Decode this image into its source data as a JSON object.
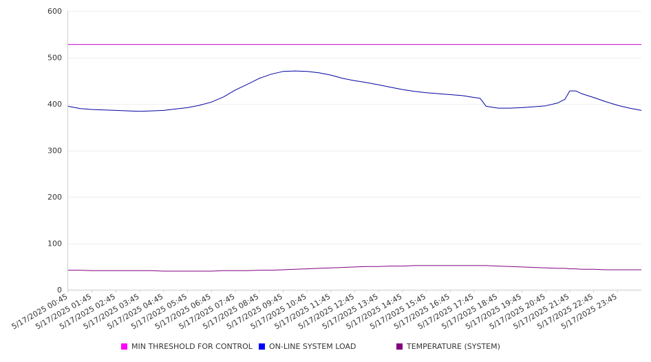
{
  "chart_data": {
    "type": "line",
    "title": "",
    "xlabel": "",
    "ylabel": "",
    "ylim": [
      0,
      600
    ],
    "y_ticks": [
      0,
      100,
      200,
      300,
      400,
      500,
      600
    ],
    "grid": "horizontal",
    "legend_position": "bottom",
    "x_tick_labels": [
      "5/17/2025 00:45",
      "5/17/2025 01:45",
      "5/17/2025 02:45",
      "5/17/2025 03:45",
      "5/17/2025 04:45",
      "5/17/2025 05:45",
      "5/17/2025 06:45",
      "5/17/2025 07:45",
      "5/17/2025 08:45",
      "5/17/2025 09:45",
      "5/17/2025 10:45",
      "5/17/2025 11:45",
      "5/17/2025 12:45",
      "5/17/2025 13:45",
      "5/17/2025 14:45",
      "5/17/2025 15:45",
      "5/17/2025 16:45",
      "5/17/2025 17:45",
      "5/17/2025 18:45",
      "5/17/2025 19:45",
      "5/17/2025 20:45",
      "5/17/2025 21:45",
      "5/17/2025 22:45",
      "5/17/2025 23:45"
    ],
    "x_hours": [
      0,
      0.5,
      1,
      1.5,
      2,
      2.5,
      3,
      3.5,
      4,
      4.5,
      5,
      5.5,
      6,
      6.5,
      7,
      7.5,
      8,
      8.5,
      9,
      9.5,
      10,
      10.5,
      11,
      11.5,
      12,
      12.5,
      13,
      13.5,
      14,
      14.5,
      15,
      15.5,
      16,
      16.5,
      17,
      17.25,
      17.5,
      18,
      18.5,
      19,
      19.5,
      20,
      20.5,
      20.8,
      21,
      21.25,
      21.5,
      22,
      22.5,
      23,
      23.5,
      24
    ],
    "series": [
      {
        "name": "MIN THRESHOLD FOR CONTROL",
        "color": "#c800c8",
        "values": [
          528,
          528,
          528,
          528,
          528,
          528,
          528,
          528,
          528,
          528,
          528,
          528,
          528,
          528,
          528,
          528,
          528,
          528,
          528,
          528,
          528,
          528,
          528,
          528,
          528,
          528,
          528,
          528,
          528,
          528,
          528,
          528,
          528,
          528,
          528,
          528,
          528,
          528,
          528,
          528,
          528,
          528,
          528,
          528,
          528,
          528,
          528,
          528,
          528,
          528,
          528,
          528
        ]
      },
      {
        "name": "ON-LINE SYSTEM LOAD",
        "color": "#0000a0",
        "values": [
          395,
          390,
          388,
          387,
          386,
          385,
          384,
          385,
          386,
          389,
          392,
          397,
          404,
          415,
          430,
          442,
          455,
          464,
          470,
          471,
          470,
          467,
          462,
          455,
          450,
          446,
          441,
          436,
          431,
          427,
          424,
          422,
          420,
          418,
          414,
          412,
          395,
          391,
          391,
          392,
          394,
          396,
          402,
          410,
          428,
          428,
          422,
          414,
          405,
          397,
          391,
          386
        ]
      },
      {
        "name": "TEMPERATURE (SYSTEM)",
        "color": "#800080",
        "values": [
          42,
          42,
          41,
          41,
          41,
          41,
          41,
          41,
          40,
          40,
          40,
          40,
          40,
          41,
          41,
          41,
          42,
          42,
          43,
          44,
          45,
          46,
          47,
          48,
          49,
          50,
          50,
          51,
          51,
          52,
          52,
          52,
          52,
          52,
          52,
          52,
          52,
          51,
          50,
          49,
          48,
          47,
          46,
          46,
          45,
          45,
          44,
          44,
          43,
          43,
          43,
          43
        ]
      }
    ]
  }
}
